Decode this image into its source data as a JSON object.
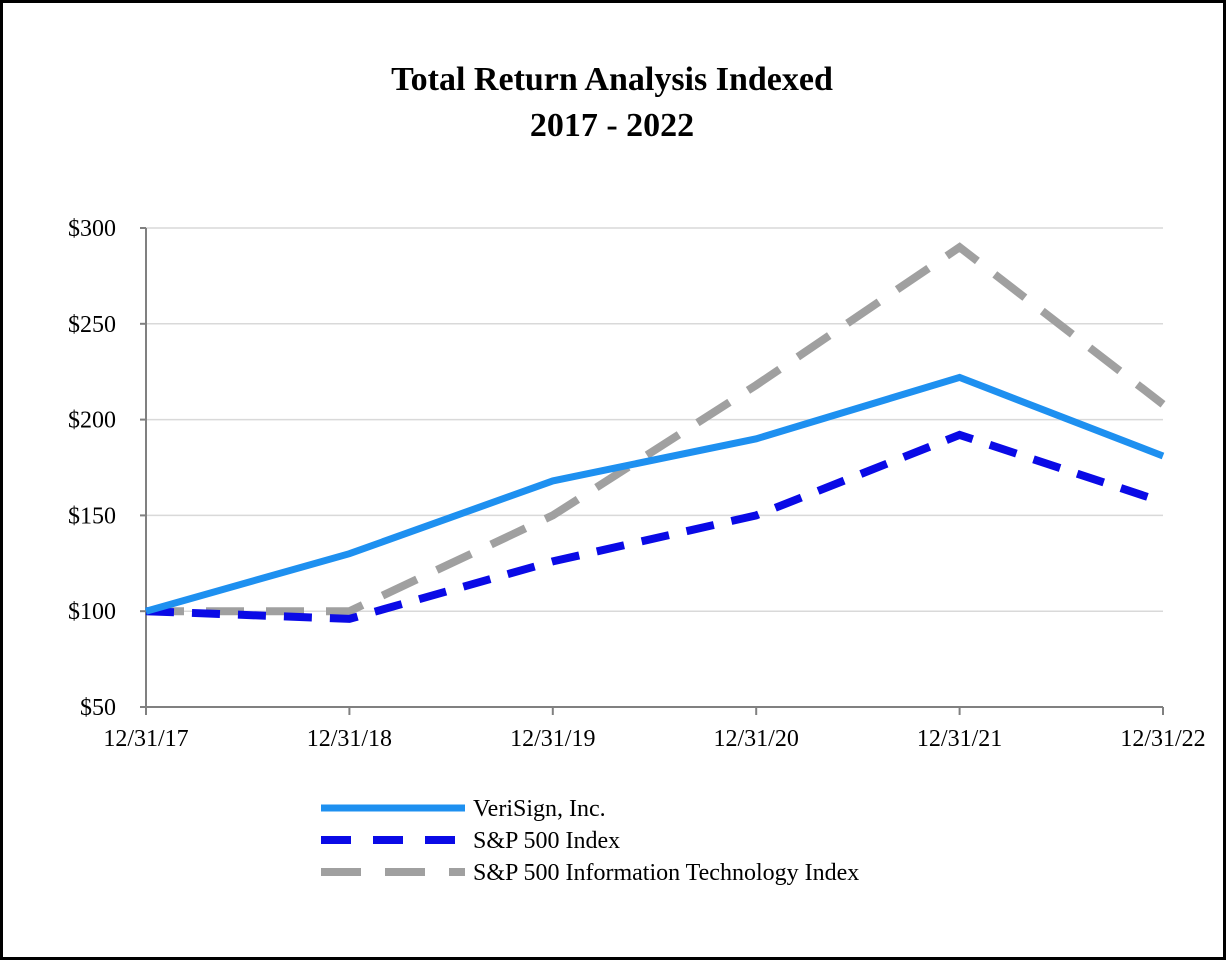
{
  "chart_data": {
    "type": "line",
    "title": "Total Return Analysis Indexed",
    "subtitle": "2017 - 2022",
    "xlabel": "",
    "ylabel": "",
    "categories": [
      "12/31/17",
      "12/31/18",
      "12/31/19",
      "12/31/20",
      "12/31/21",
      "12/31/22"
    ],
    "y_ticks": [
      {
        "value": 50,
        "label": "$50"
      },
      {
        "value": 100,
        "label": "$100"
      },
      {
        "value": 150,
        "label": "$150"
      },
      {
        "value": 200,
        "label": "$200"
      },
      {
        "value": 250,
        "label": "$250"
      },
      {
        "value": 300,
        "label": "$300"
      }
    ],
    "ylim": [
      50,
      300
    ],
    "grid": true,
    "legend_position": "bottom-left",
    "series": [
      {
        "key": "verisign",
        "name": "VeriSign, Inc.",
        "color": "#1E90F0",
        "style": "solid",
        "values": [
          100,
          130,
          168,
          190,
          222,
          181
        ]
      },
      {
        "key": "sp500",
        "name": "S&P 500 Index",
        "color": "#0A0AE6",
        "style": "dashed",
        "values": [
          100,
          96,
          126,
          150,
          192,
          157
        ]
      },
      {
        "key": "sp500it",
        "name": "S&P 500 Information Technology Index",
        "color": "#A0A0A0",
        "style": "long-dashed",
        "values": [
          100,
          100,
          150,
          218,
          290,
          208
        ]
      }
    ]
  }
}
